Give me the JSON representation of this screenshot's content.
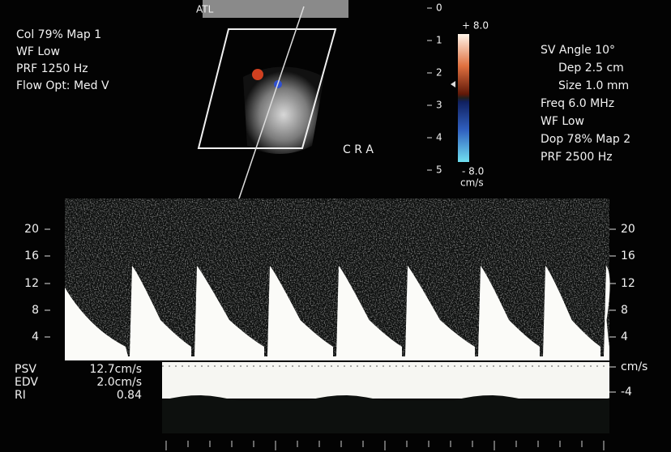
{
  "logo": "ATL",
  "left_settings": [
    "Col 79%  Map 1",
    "WF Low",
    "PRF 1250  Hz",
    "Flow Opt: Med V"
  ],
  "right_settings": [
    "SV Angle 10°",
    "Dep 2.5  cm",
    "Size 1.0  mm",
    "Freq 6.0  MHz",
    "WF Low",
    "Dop 78%  Map 2",
    "PRF 2500  Hz"
  ],
  "vessel_label": "C R A",
  "depth_scale": [
    "0",
    "1",
    "2",
    "3",
    "4",
    "5"
  ],
  "color_bar": {
    "top": "+ 8.0",
    "bottom": "- 8.0",
    "unit": "cm/s"
  },
  "velocity_scale_left": [
    "20",
    "16",
    "12",
    "8",
    "4"
  ],
  "velocity_scale_right": [
    "20",
    "16",
    "12",
    "8",
    "4",
    "cm/s",
    "-4"
  ],
  "measurements": [
    {
      "label": "PSV",
      "value": "12.7cm/s"
    },
    {
      "label": "EDV",
      "value": "2.0cm/s"
    },
    {
      "label": "RI",
      "value": "0.84"
    }
  ]
}
